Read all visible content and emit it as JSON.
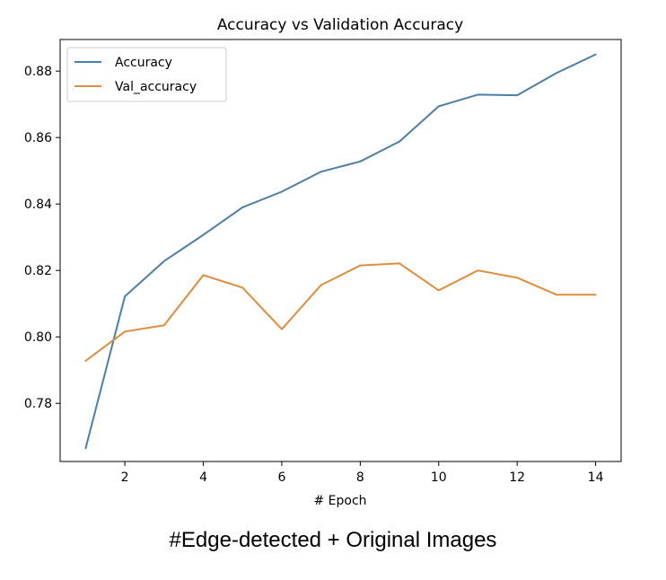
{
  "chart_data": {
    "type": "line",
    "title": "Accuracy vs Validation Accuracy",
    "xlabel": "# Epoch",
    "ylabel": "",
    "x": [
      1,
      2,
      3,
      4,
      5,
      6,
      7,
      8,
      9,
      10,
      11,
      12,
      13,
      14
    ],
    "xlim": [
      0.35,
      14.65
    ],
    "ylim": [
      0.7625,
      0.8895
    ],
    "xticks": [
      2,
      4,
      6,
      8,
      10,
      12,
      14
    ],
    "yticks": [
      0.78,
      0.8,
      0.82,
      0.84,
      0.86,
      0.88
    ],
    "grid": false,
    "legend_position": "top-left",
    "series": [
      {
        "name": "Accuracy",
        "color": "#4c7fa6",
        "values": [
          0.7665,
          0.8122,
          0.8228,
          0.8307,
          0.839,
          0.8437,
          0.8497,
          0.8528,
          0.8588,
          0.8694,
          0.8729,
          0.8727,
          0.8794,
          0.885
        ]
      },
      {
        "name": "Val_accuracy",
        "color": "#e08c3c",
        "values": [
          0.7928,
          0.8016,
          0.8035,
          0.8186,
          0.8148,
          0.8023,
          0.8156,
          0.8215,
          0.8221,
          0.814,
          0.82,
          0.8178,
          0.8127,
          0.8127
        ]
      }
    ]
  },
  "caption": "#Edge-detected + Original Images"
}
